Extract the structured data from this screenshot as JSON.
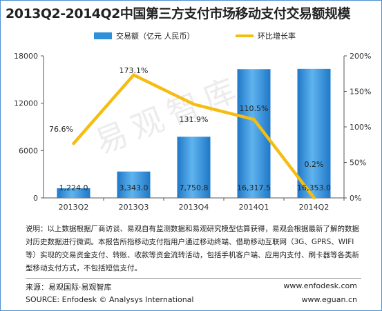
{
  "title": "2013Q2-2014Q2中国第三方支付市场移动支付交易额规模",
  "watermark": "易观智库",
  "chart_data": {
    "type": "bar+line",
    "categories": [
      "2013Q2",
      "2013Q3",
      "2013Q4",
      "2014Q1",
      "2014Q2"
    ],
    "series": [
      {
        "name": "交易额（亿元 人民币）",
        "type": "bar",
        "axis": "left",
        "values": [
          1224.0,
          3343.0,
          7750.8,
          16317.5,
          16353.0
        ],
        "labels": [
          "1,224.0",
          "3,343.0",
          "7,750.8",
          "16,317.5",
          "16,353.0"
        ],
        "color": "#2f8fd8"
      },
      {
        "name": "环比增长率",
        "type": "line",
        "axis": "right",
        "values": [
          76.6,
          173.1,
          131.9,
          110.5,
          0.2
        ],
        "labels": [
          "76.6%",
          "173.1%",
          "131.9%",
          "110.5%",
          "0.2%"
        ],
        "color": "#f5bd12"
      }
    ],
    "y_left": {
      "min": 0,
      "max": 18000,
      "ticks": [
        0,
        6000,
        12000,
        18000
      ]
    },
    "y_right": {
      "min": 0,
      "max": 200,
      "ticks": [
        "0%",
        "50%",
        "100%",
        "150%",
        "200%"
      ]
    },
    "legend_position": "top",
    "grid": false
  },
  "note": "说明：以上数据根据厂商访谈、易观自有监测数据和易观研究模型估算获得，易观会根据最新了解的数据对历史数据进行微调。本报告所指移动支付指用户通过移动终端、借助移动互联网（3G、GPRS、WIFI等）实现的交易资金支付、转账、收款等资金流转活动，包括手机客户端、应用内支付、刷卡器等各类新型移动支付方式，不包括短信支付。",
  "footer": {
    "source_cn": "来源：易观国际·易观智库",
    "source_en": "SOURCE: Enfodesk © Analysys International",
    "url_1": "www.enfodesk.com",
    "url_2": "www.eguan.cn"
  }
}
